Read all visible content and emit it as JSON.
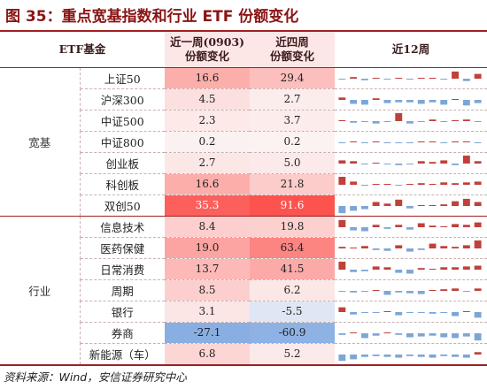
{
  "title": "图 35：重点宽基指数和行业 ETF 份额变化",
  "header": {
    "col_name": "ETF基金",
    "col_1w_line1": "近一周(0903)",
    "col_1w_line2": "份额变化",
    "col_4w_line1": "近四周",
    "col_4w_line2": "份额变化",
    "col_12w": "近12周"
  },
  "colors": {
    "pos_bar": "#c0403a",
    "neg_bar": "#7da6d6",
    "title": "#8a1414"
  },
  "groups": [
    {
      "label": "宽基",
      "rows": [
        {
          "name": "上证50",
          "w1": "16.6",
          "w4": "29.4",
          "trend": [
            -0.1,
            0.2,
            -0.2,
            0.1,
            -0.05,
            0.05,
            -0.1,
            0.1,
            0.05,
            -0.1,
            0.9,
            -0.3,
            0.6
          ]
        },
        {
          "name": "沪深300",
          "w1": "4.5",
          "w4": "2.7",
          "trend": [
            0.3,
            -0.5,
            -0.6,
            0.2,
            -0.4,
            -0.3,
            -0.3,
            -0.5,
            -0.3,
            -0.6,
            0.1,
            -0.7,
            -0.4
          ]
        },
        {
          "name": "中证500",
          "w1": "2.3",
          "w4": "3.7",
          "trend": [
            0.05,
            -0.2,
            -0.1,
            -0.3,
            -0.1,
            1.0,
            -0.3,
            -0.05,
            0.2,
            -0.1,
            0.1,
            0.2,
            -0.05
          ]
        },
        {
          "name": "中证800",
          "w1": "0.2",
          "w4": "0.2",
          "trend": [
            -0.05,
            0.05,
            -0.1,
            0.05,
            -0.05,
            -0.05,
            -0.1,
            0.05,
            0.1,
            -0.05,
            0.05,
            0.1,
            -0.05
          ]
        },
        {
          "name": "创业板",
          "w1": "2.7",
          "w4": "5.0",
          "trend": [
            0.4,
            0.3,
            -0.1,
            0.1,
            -0.1,
            -0.2,
            -0.1,
            0.3,
            0.2,
            0.4,
            -0.2,
            1.0,
            0.3
          ]
        },
        {
          "name": "科创板",
          "w1": "16.6",
          "w4": "21.8",
          "trend": [
            1.0,
            0.4,
            -0.05,
            0.05,
            0.1,
            -0.05,
            0.1,
            0.2,
            0.1,
            0.3,
            0.2,
            0.3,
            0.4
          ]
        },
        {
          "name": "双创50",
          "w1": "35.3",
          "w4": "91.6",
          "trend": [
            -0.9,
            -0.6,
            -0.4,
            0.5,
            0.3,
            0.8,
            -0.3,
            0.1,
            0.1,
            0.2,
            0.6,
            0.9,
            0.5
          ]
        }
      ]
    },
    {
      "label": "行业",
      "rows": [
        {
          "name": "信息技术",
          "w1": "8.4",
          "w4": "19.8",
          "trend": [
            0.9,
            -0.4,
            -0.5,
            0.3,
            -0.2,
            0.3,
            -0.3,
            0.5,
            0.2,
            0.1,
            0.4,
            0.3,
            0.6
          ]
        },
        {
          "name": "医药保健",
          "w1": "19.0",
          "w4": "63.4",
          "trend": [
            0.2,
            0.05,
            0.3,
            -0.2,
            -0.3,
            0.4,
            -0.4,
            -0.2,
            0.6,
            0.3,
            0.2,
            0.4,
            1.0
          ]
        },
        {
          "name": "日常消费",
          "w1": "13.7",
          "w4": "41.5",
          "trend": [
            1.0,
            -0.3,
            -0.2,
            0.4,
            0.3,
            -0.4,
            -0.5,
            0.2,
            0.1,
            0.3,
            0.3,
            0.4,
            0.5
          ]
        },
        {
          "name": "周期",
          "w1": "8.5",
          "w4": "6.2",
          "trend": [
            -0.1,
            -0.2,
            -0.1,
            0.05,
            -0.5,
            -0.2,
            -0.3,
            -0.4,
            0.1,
            0.2,
            0.3,
            -0.05,
            0.3
          ]
        },
        {
          "name": "银行",
          "w1": "3.1",
          "w4": "-5.5",
          "trend": [
            0.6,
            -0.3,
            -0.05,
            -0.1,
            0.1,
            -0.4,
            -0.1,
            -0.05,
            -0.2,
            -0.1,
            -0.5,
            0.1,
            -0.7
          ]
        },
        {
          "name": "券商",
          "w1": "-27.1",
          "w4": "-60.9",
          "trend": [
            -0.2,
            0.1,
            -0.6,
            -0.3,
            0.05,
            -0.2,
            -0.5,
            -0.4,
            -0.3,
            -0.5,
            -0.6,
            -0.4,
            -0.9
          ]
        },
        {
          "name": "新能源（车）",
          "w1": "6.8",
          "w4": "5.2",
          "trend": [
            -0.8,
            -0.6,
            -0.3,
            -0.2,
            -0.3,
            -0.4,
            -0.2,
            -0.3,
            -0.4,
            -0.2,
            -0.3,
            -0.4,
            0.3
          ]
        }
      ]
    }
  ],
  "source": "资料来源：Wind，安信证券研究中心"
}
